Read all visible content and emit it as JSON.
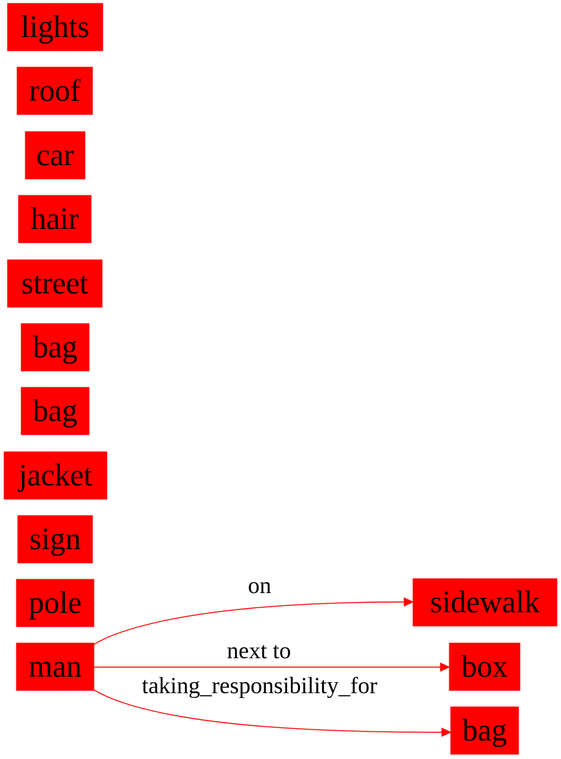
{
  "graph": {
    "colors": {
      "node_fill": "#ff0000",
      "edge": "#ff0000",
      "text": "#000000",
      "background": "#ffffff"
    },
    "nodes": [
      {
        "id": "lights",
        "label": "lights"
      },
      {
        "id": "roof",
        "label": "roof"
      },
      {
        "id": "car",
        "label": "car"
      },
      {
        "id": "hair",
        "label": "hair"
      },
      {
        "id": "street",
        "label": "street"
      },
      {
        "id": "bag1",
        "label": "bag"
      },
      {
        "id": "bag2",
        "label": "bag"
      },
      {
        "id": "jacket",
        "label": "jacket"
      },
      {
        "id": "sign",
        "label": "sign"
      },
      {
        "id": "pole",
        "label": "pole"
      },
      {
        "id": "man",
        "label": "man"
      },
      {
        "id": "sidewalk",
        "label": "sidewalk"
      },
      {
        "id": "box",
        "label": "box"
      },
      {
        "id": "bag3",
        "label": "bag"
      }
    ],
    "edges": [
      {
        "from": "man",
        "to": "sidewalk",
        "label": "on"
      },
      {
        "from": "man",
        "to": "box",
        "label": "next to"
      },
      {
        "from": "man",
        "to": "bag3",
        "label": "taking_responsibility_for"
      }
    ]
  }
}
